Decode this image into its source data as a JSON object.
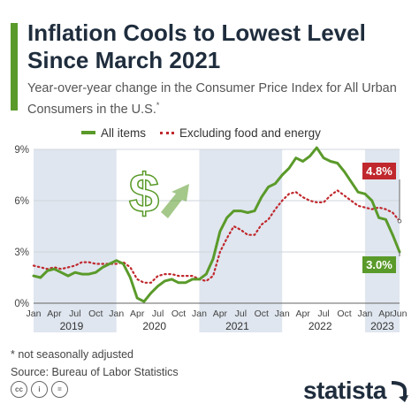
{
  "header": {
    "title": "Inflation Cools to Lowest Level Since March 2021",
    "subtitle": "Year-over-year change in the Consumer Price Index for All Urban Consumers in the U.S.",
    "subtitle_mark": "*"
  },
  "footer": {
    "note": "* not seasonally adjusted",
    "source": "Source: Bureau of Labor Statistics",
    "brand": "statista",
    "license_icons": [
      "cc-icon",
      "person-icon",
      "equals-icon"
    ]
  },
  "colors": {
    "accent": "#5a9a2a",
    "all_items": "#5a9a2a",
    "core": "#c0282d",
    "shade": "#dfe6ef",
    "title": "#1f2d3d"
  },
  "chart_data": {
    "type": "line",
    "ylim": [
      0,
      9
    ],
    "yticks": [
      "0%",
      "3%",
      "6%",
      "9%"
    ],
    "month_labels": [
      "Jan",
      "Apr",
      "Jul",
      "Oct"
    ],
    "last_month_label": "Jun",
    "years": [
      "2019",
      "2020",
      "2021",
      "2022",
      "2023"
    ],
    "x_start": "2019-01",
    "x_end": "2023-06",
    "grid": true,
    "legend_position": "top",
    "alternating_year_shading": true,
    "series": [
      {
        "name": "All items",
        "style": "solid",
        "values": [
          1.6,
          1.5,
          1.9,
          2.0,
          1.8,
          1.6,
          1.8,
          1.7,
          1.7,
          1.8,
          2.1,
          2.3,
          2.5,
          2.3,
          1.5,
          0.3,
          0.1,
          0.6,
          1.0,
          1.3,
          1.4,
          1.2,
          1.2,
          1.4,
          1.4,
          1.7,
          2.6,
          4.2,
          5.0,
          5.4,
          5.4,
          5.3,
          5.4,
          6.2,
          6.8,
          7.0,
          7.5,
          7.9,
          8.5,
          8.3,
          8.6,
          9.1,
          8.5,
          8.3,
          8.2,
          7.7,
          7.1,
          6.5,
          6.4,
          6.0,
          5.0,
          4.9,
          4.0,
          3.0
        ],
        "end_label": "3.0%"
      },
      {
        "name": "Excluding food and energy",
        "style": "dotted",
        "values": [
          2.2,
          2.1,
          2.0,
          2.1,
          2.0,
          2.1,
          2.2,
          2.4,
          2.4,
          2.3,
          2.3,
          2.3,
          2.3,
          2.4,
          2.1,
          1.4,
          1.2,
          1.2,
          1.6,
          1.7,
          1.7,
          1.6,
          1.6,
          1.6,
          1.4,
          1.3,
          1.6,
          3.0,
          3.8,
          4.5,
          4.3,
          4.0,
          4.0,
          4.6,
          4.9,
          5.5,
          6.0,
          6.4,
          6.5,
          6.2,
          6.0,
          5.9,
          5.9,
          6.3,
          6.6,
          6.3,
          6.0,
          5.7,
          5.6,
          5.5,
          5.6,
          5.5,
          5.3,
          4.8
        ],
        "end_label": "4.8%"
      }
    ]
  }
}
